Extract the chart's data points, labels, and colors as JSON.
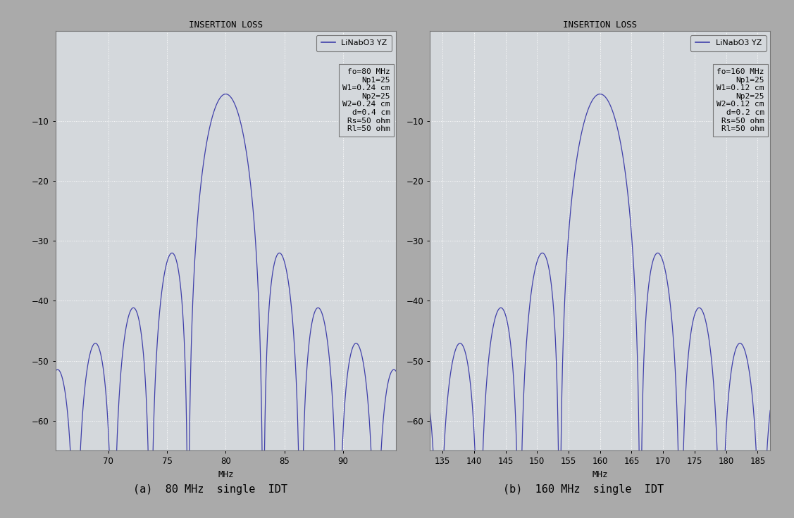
{
  "background_color": "#aaaaaa",
  "plot_bg_color": "#d4d8dc",
  "line_color": "#4040aa",
  "title": "INSERTION LOSS",
  "xlabel": "MHz",
  "ylim": [
    -65,
    5
  ],
  "yticks": [
    -60,
    -50,
    -40,
    -30,
    -20,
    -10
  ],
  "grid_color": "#ffffff",
  "grid_style": "dotted",
  "caption_a": "(a)  80 MHz  single  IDT",
  "caption_b": "(b)  160 MHz  single  IDT",
  "plot_a": {
    "f0": 80,
    "fmin": 65.5,
    "fmax": 94.5,
    "xticks": [
      70,
      75,
      80,
      85,
      90
    ],
    "Np1": 25,
    "Np2": 25,
    "scale_dB": -5.5,
    "legend_lines": [
      "LiNabO3 YZ",
      "fo=80 MHz",
      "Np1=25",
      "W1=0.24 cm",
      "Np2=25",
      "W2=0.24 cm",
      "d=0.4 cm",
      "Rs=50 ohm",
      "Rl=50 ohm"
    ]
  },
  "plot_b": {
    "f0": 160,
    "fmin": 133,
    "fmax": 187,
    "xticks": [
      135,
      140,
      145,
      150,
      155,
      160,
      165,
      170,
      175,
      180,
      185
    ],
    "Np1": 25,
    "Np2": 25,
    "scale_dB": -5.5,
    "legend_lines": [
      "LiNabO3 YZ",
      "fo=160 MHz",
      "Np1=25",
      "W1=0.12 cm",
      "Np2=25",
      "W2=0.12 cm",
      "d=0.2 cm",
      "Rs=50 ohm",
      "Rl=50 ohm"
    ]
  }
}
